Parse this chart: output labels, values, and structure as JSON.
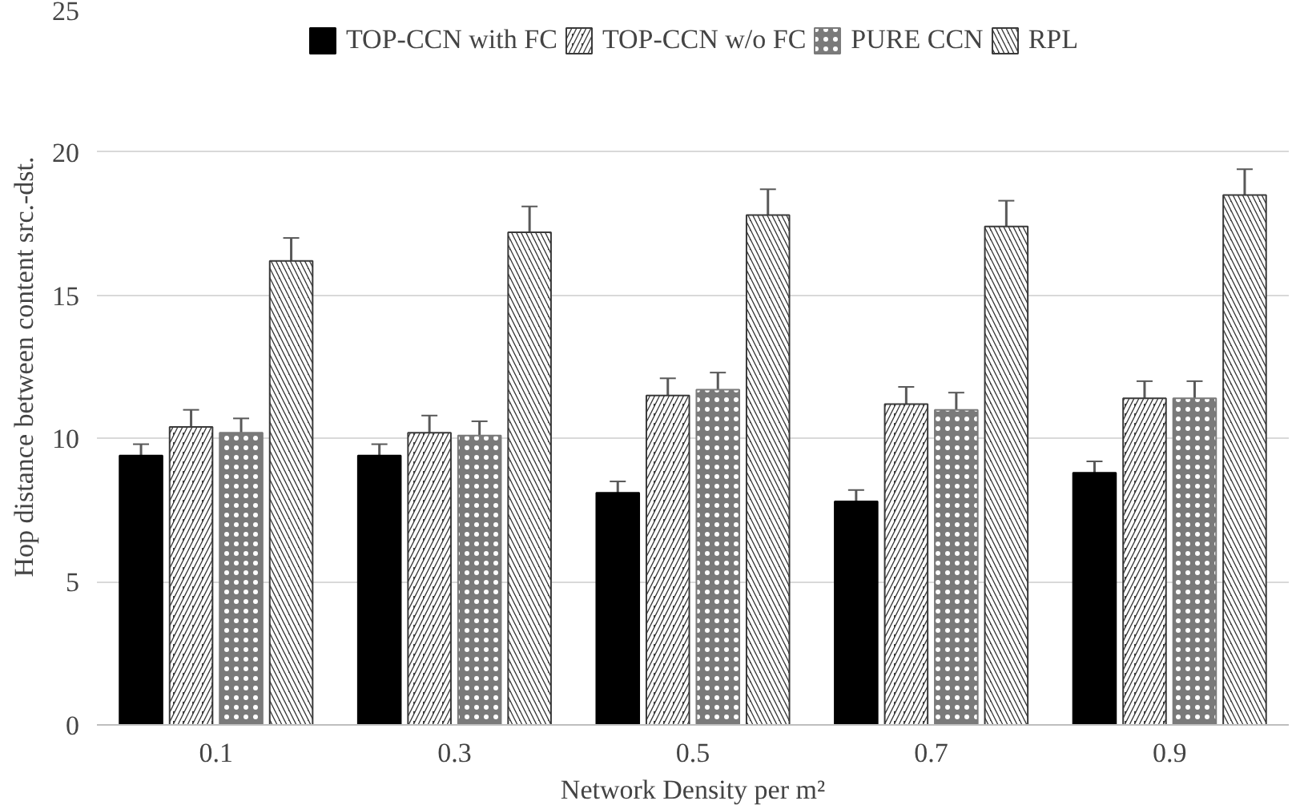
{
  "chart_data": {
    "type": "bar",
    "xlabel": "Network Density per m²",
    "ylabel": "Hop distance between content src.-dst.",
    "categories": [
      "0.1",
      "0.3",
      "0.5",
      "0.7",
      "0.9"
    ],
    "series": [
      {
        "name": "TOP-CCN with FC",
        "color": "#000000",
        "values": [
          9.4,
          9.4,
          8.1,
          7.8,
          8.8
        ],
        "errors": [
          0.4,
          0.4,
          0.4,
          0.4,
          0.4
        ]
      },
      {
        "name": "TOP-CCN w/o FC",
        "color": "#3a3a3a",
        "values": [
          10.4,
          10.2,
          11.5,
          11.2,
          11.4
        ],
        "errors": [
          0.6,
          0.6,
          0.6,
          0.6,
          0.6
        ]
      },
      {
        "name": "PURE CCN",
        "color": "#7a7a7a",
        "values": [
          10.2,
          10.1,
          11.7,
          11.0,
          11.4
        ],
        "errors": [
          0.5,
          0.5,
          0.6,
          0.6,
          0.6
        ]
      },
      {
        "name": "RPL",
        "color": "#3a3a3a",
        "values": [
          16.2,
          17.2,
          17.8,
          17.4,
          18.5
        ],
        "errors": [
          0.8,
          0.9,
          0.9,
          0.9,
          0.9
        ]
      }
    ],
    "ylim": [
      0,
      25
    ],
    "yticks": [
      0,
      5,
      10,
      15,
      20,
      25
    ],
    "grid": "y",
    "legend": "top"
  }
}
